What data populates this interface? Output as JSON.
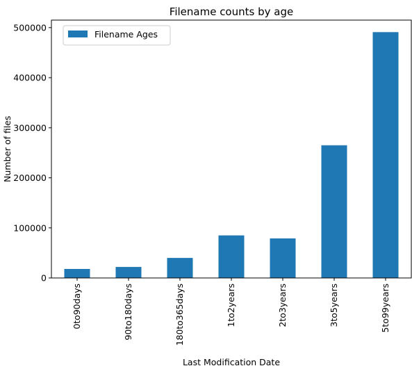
{
  "chart_data": {
    "type": "bar",
    "title": "Filename counts by age",
    "xlabel": "Last Modification Date",
    "ylabel": "Number of files",
    "categories": [
      "0to90days",
      "90to180days",
      "180to365days",
      "1to2years",
      "2to3years",
      "3to5years",
      "5to99years"
    ],
    "series": [
      {
        "name": "Filename Ages",
        "values": [
          18000,
          22000,
          40000,
          85000,
          79000,
          265000,
          491000
        ],
        "color": "#1f77b4"
      }
    ],
    "ylim": [
      0,
      515000
    ],
    "yticks": [
      0,
      100000,
      200000,
      300000,
      400000,
      500000
    ],
    "ytick_labels": [
      "0",
      "100000",
      "200000",
      "300000",
      "400000",
      "500000"
    ],
    "legend_position": "top-left",
    "grid": false
  }
}
